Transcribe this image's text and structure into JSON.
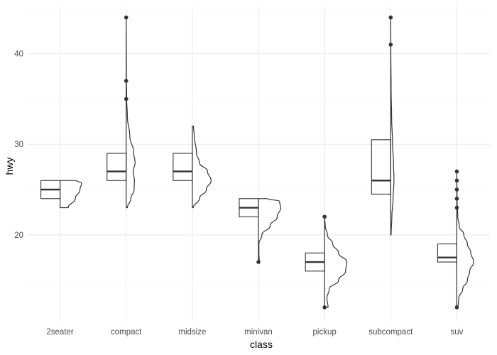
{
  "chart_data": {
    "type": "box+half-violin",
    "title": "",
    "xlabel": "class",
    "ylabel": "hwy",
    "categories": [
      "2seater",
      "compact",
      "midsize",
      "minivan",
      "pickup",
      "subcompact",
      "suv"
    ],
    "ylim": [
      10.5,
      45.3
    ],
    "y_ticks": [
      20,
      30,
      40
    ],
    "grid": true,
    "colors": {
      "ink": "#333333",
      "grid": "#ebebeb",
      "tick_text": "#4d4d4d"
    },
    "boxes": [
      {
        "class": "2seater",
        "q1": 24,
        "median": 25,
        "q3": 26
      },
      {
        "class": "compact",
        "q1": 26,
        "median": 27,
        "q3": 29
      },
      {
        "class": "midsize",
        "q1": 26,
        "median": 27,
        "q3": 29
      },
      {
        "class": "minivan",
        "q1": 22,
        "median": 23,
        "q3": 24
      },
      {
        "class": "pickup",
        "q1": 16,
        "median": 17,
        "q3": 18
      },
      {
        "class": "subcompact",
        "q1": 24.5,
        "median": 26,
        "q3": 30.5
      },
      {
        "class": "suv",
        "q1": 17,
        "median": 17.5,
        "q3": 19
      }
    ],
    "outliers": [
      {
        "class": "compact",
        "values": [
          35,
          37,
          44
        ]
      },
      {
        "class": "minivan",
        "values": [
          17
        ]
      },
      {
        "class": "pickup",
        "values": [
          12,
          22
        ]
      },
      {
        "class": "subcompact",
        "values": [
          41,
          44
        ]
      },
      {
        "class": "suv",
        "values": [
          12,
          23,
          24,
          25,
          26,
          27
        ]
      }
    ],
    "densities": [
      {
        "class": "2seater",
        "profile": [
          [
            23,
            0.0
          ],
          [
            23,
            0.35
          ],
          [
            24,
            0.65
          ],
          [
            25,
            0.85
          ],
          [
            25.7,
            0.92
          ],
          [
            26,
            0.7
          ],
          [
            26,
            0.0
          ]
        ]
      },
      {
        "class": "compact",
        "profile": [
          [
            23,
            0.0
          ],
          [
            23,
            0.05
          ],
          [
            24,
            0.2
          ],
          [
            25,
            0.34
          ],
          [
            26,
            0.35
          ],
          [
            27,
            0.3
          ],
          [
            28,
            0.38
          ],
          [
            29,
            0.32
          ],
          [
            31,
            0.15
          ],
          [
            33,
            0.05
          ],
          [
            35,
            0.02
          ],
          [
            38,
            0.01
          ],
          [
            41,
            0.005
          ],
          [
            44,
            0.0
          ]
        ]
      },
      {
        "class": "midsize",
        "profile": [
          [
            23,
            0.0
          ],
          [
            23,
            0.04
          ],
          [
            24,
            0.3
          ],
          [
            25,
            0.6
          ],
          [
            26,
            0.8
          ],
          [
            27,
            0.65
          ],
          [
            28,
            0.3
          ],
          [
            29,
            0.18
          ],
          [
            31,
            0.08
          ],
          [
            32,
            0.05
          ],
          [
            32,
            0.0
          ]
        ]
      },
      {
        "class": "minivan",
        "profile": [
          [
            17,
            0.0
          ],
          [
            17,
            0.04
          ],
          [
            18,
            0.02
          ],
          [
            19,
            0.02
          ],
          [
            20,
            0.15
          ],
          [
            21,
            0.5
          ],
          [
            22,
            0.8
          ],
          [
            23,
            0.95
          ],
          [
            23.7,
            0.9
          ],
          [
            24,
            0.4
          ],
          [
            24,
            0.0
          ]
        ]
      },
      {
        "class": "pickup",
        "profile": [
          [
            12,
            0.0
          ],
          [
            12,
            0.15
          ],
          [
            13,
            0.1
          ],
          [
            14,
            0.2
          ],
          [
            15,
            0.6
          ],
          [
            16,
            0.9
          ],
          [
            17,
            0.95
          ],
          [
            18,
            0.6
          ],
          [
            19,
            0.35
          ],
          [
            20,
            0.12
          ],
          [
            21,
            0.03
          ],
          [
            22,
            0.0
          ]
        ]
      },
      {
        "class": "subcompact",
        "profile": [
          [
            20,
            0.0
          ],
          [
            20,
            0.02
          ],
          [
            22,
            0.05
          ],
          [
            24,
            0.1
          ],
          [
            26,
            0.14
          ],
          [
            28,
            0.12
          ],
          [
            30,
            0.08
          ],
          [
            33,
            0.04
          ],
          [
            36,
            0.02
          ],
          [
            40,
            0.005
          ],
          [
            44,
            0.0
          ]
        ]
      },
      {
        "class": "suv",
        "profile": [
          [
            12,
            0.0
          ],
          [
            12,
            0.05
          ],
          [
            13,
            0.08
          ],
          [
            14,
            0.25
          ],
          [
            15,
            0.45
          ],
          [
            16,
            0.55
          ],
          [
            17,
            0.72
          ],
          [
            18,
            0.6
          ],
          [
            19,
            0.45
          ],
          [
            20,
            0.3
          ],
          [
            21,
            0.1
          ],
          [
            22,
            0.04
          ],
          [
            24,
            0.01
          ],
          [
            27,
            0.0
          ]
        ]
      }
    ]
  }
}
